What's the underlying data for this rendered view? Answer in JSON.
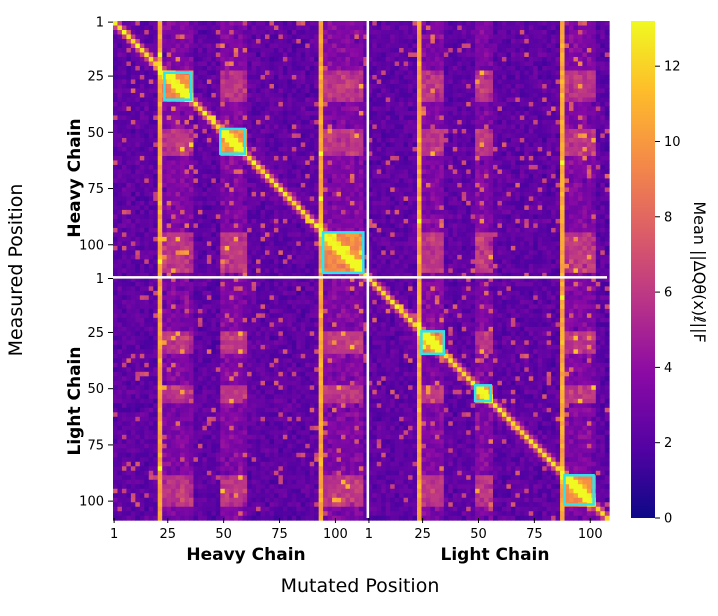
{
  "chart_data": {
    "type": "heatmap",
    "xlabel": "Mutated Position",
    "ylabel": "Measured Position",
    "x_groups": [
      {
        "label": "Heavy Chain",
        "start": 1,
        "end": 114
      },
      {
        "label": "Light Chain",
        "start": 1,
        "end": 107
      }
    ],
    "y_groups": [
      {
        "label": "Heavy Chain",
        "start": 1,
        "end": 114
      },
      {
        "label": "Light Chain",
        "start": 1,
        "end": 107
      }
    ],
    "heavy_ticks": [
      1,
      25,
      50,
      75,
      100
    ],
    "light_ticks": [
      1,
      25,
      50,
      75,
      100
    ],
    "colorbar": {
      "label": "Mean ||ΔQθ(x)ℓ||F",
      "ticks": [
        0,
        2,
        4,
        6,
        8,
        10,
        12
      ],
      "range": [
        0,
        13.2
      ],
      "colormap": [
        "#0d0887",
        "#5302a3",
        "#8b0aa5",
        "#b83289",
        "#db5c68",
        "#f48849",
        "#febd2a",
        "#f0f921"
      ]
    },
    "highlight_boxes": [
      {
        "chain": "Heavy",
        "start": 24,
        "end": 35
      },
      {
        "chain": "Heavy",
        "start": 49,
        "end": 59
      },
      {
        "chain": "Heavy",
        "start": 95,
        "end": 112
      },
      {
        "chain": "Light",
        "start": 25,
        "end": 34
      },
      {
        "chain": "Light",
        "start": 49,
        "end": 55
      },
      {
        "chain": "Light",
        "start": 89,
        "end": 101
      }
    ],
    "high_value_columns": [
      {
        "chain": "Heavy",
        "position": 22
      },
      {
        "chain": "Heavy",
        "position": 94
      },
      {
        "chain": "Light",
        "position": 23
      },
      {
        "chain": "Light",
        "position": 88
      }
    ],
    "notes": "Strongest values lie on the diagonal; the matrix is split into heavy/light chain blocks by white separator lines."
  }
}
